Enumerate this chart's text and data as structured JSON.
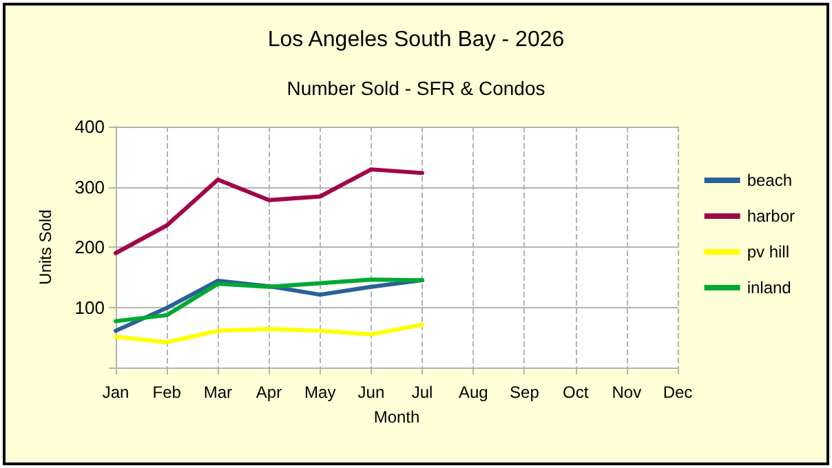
{
  "chart_data": {
    "type": "line",
    "title": "Los Angeles South Bay - 2026",
    "subtitle": "Number Sold - SFR & Condos",
    "xlabel": "Month",
    "ylabel": "Units Sold",
    "categories": [
      "Jan",
      "Feb",
      "Mar",
      "Apr",
      "May",
      "Jun",
      "Jul",
      "Aug",
      "Sep",
      "Oct",
      "Nov",
      "Dec"
    ],
    "series": [
      {
        "name": "beach",
        "color": "#2a6099",
        "values": [
          61,
          99,
          144,
          135,
          121,
          134,
          145,
          null,
          null,
          null,
          null,
          null
        ]
      },
      {
        "name": "harbor",
        "color": "#a1064a",
        "values": [
          190,
          236,
          312,
          278,
          284,
          329,
          323,
          null,
          null,
          null,
          null,
          null
        ]
      },
      {
        "name": "pv hill",
        "color": "#ffff00",
        "values": [
          51,
          42,
          61,
          64,
          61,
          55,
          71,
          null,
          null,
          null,
          null,
          null
        ]
      },
      {
        "name": "inland",
        "color": "#00a933",
        "values": [
          77,
          87,
          139,
          134,
          140,
          146,
          145,
          null,
          null,
          null,
          null,
          null
        ]
      }
    ],
    "ylim": [
      0,
      400
    ],
    "yticks": [
      {
        "value": 0,
        "label": null
      },
      100,
      200,
      300,
      400
    ],
    "grid": true,
    "legend": "right",
    "marker": "none",
    "line_style": "solid"
  }
}
